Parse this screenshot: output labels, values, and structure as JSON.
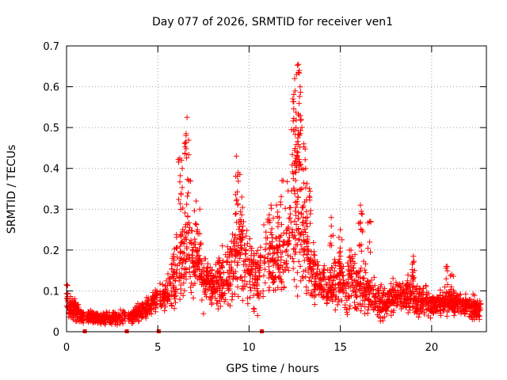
{
  "chart_data": {
    "type": "scatter",
    "title": "Day 077 of 2026, SRMTID for receiver ven1",
    "xlabel": "GPS time / hours",
    "ylabel": "SRMTID / TECUs",
    "xlim": [
      0,
      23
    ],
    "ylim": [
      0,
      0.7
    ],
    "xticks": [
      0,
      5,
      10,
      15,
      20
    ],
    "yticks": [
      0,
      0.1,
      0.2,
      0.3,
      0.4,
      0.5,
      0.6,
      0.7
    ],
    "grid": true,
    "marker": "+",
    "marker_color": "#ff0000",
    "gap_marker_color": "#ff0000",
    "gaps_x": [
      1.0,
      3.3,
      5.05,
      10.7
    ],
    "envelope": [
      [
        0.0,
        0.07,
        0.025
      ],
      [
        0.5,
        0.05,
        0.02
      ],
      [
        1.0,
        0.035,
        0.01
      ],
      [
        2.0,
        0.033,
        0.01
      ],
      [
        3.0,
        0.035,
        0.012
      ],
      [
        4.0,
        0.045,
        0.015
      ],
      [
        4.6,
        0.07,
        0.02
      ],
      [
        5.0,
        0.08,
        0.02
      ],
      [
        5.5,
        0.09,
        0.03
      ],
      [
        6.0,
        0.14,
        0.06
      ],
      [
        6.5,
        0.2,
        0.08
      ],
      [
        7.0,
        0.17,
        0.06
      ],
      [
        7.5,
        0.12,
        0.04
      ],
      [
        8.0,
        0.11,
        0.04
      ],
      [
        8.5,
        0.13,
        0.05
      ],
      [
        9.0,
        0.16,
        0.07
      ],
      [
        9.5,
        0.21,
        0.08
      ],
      [
        10.0,
        0.15,
        0.06
      ],
      [
        10.5,
        0.14,
        0.06
      ],
      [
        11.0,
        0.18,
        0.07
      ],
      [
        11.5,
        0.17,
        0.06
      ],
      [
        12.0,
        0.2,
        0.09
      ],
      [
        12.5,
        0.33,
        0.16
      ],
      [
        13.0,
        0.22,
        0.09
      ],
      [
        13.5,
        0.14,
        0.05
      ],
      [
        14.0,
        0.12,
        0.04
      ],
      [
        14.5,
        0.11,
        0.04
      ],
      [
        15.0,
        0.13,
        0.05
      ],
      [
        15.5,
        0.11,
        0.05
      ],
      [
        16.0,
        0.12,
        0.06
      ],
      [
        16.5,
        0.09,
        0.04
      ],
      [
        17.0,
        0.07,
        0.03
      ],
      [
        17.5,
        0.07,
        0.03
      ],
      [
        18.0,
        0.09,
        0.03
      ],
      [
        18.5,
        0.09,
        0.03
      ],
      [
        19.0,
        0.08,
        0.03
      ],
      [
        19.5,
        0.08,
        0.03
      ],
      [
        20.0,
        0.07,
        0.02
      ],
      [
        20.5,
        0.07,
        0.02
      ],
      [
        21.0,
        0.07,
        0.02
      ],
      [
        21.5,
        0.065,
        0.02
      ],
      [
        22.0,
        0.06,
        0.02
      ],
      [
        22.7,
        0.055,
        0.02
      ]
    ],
    "peaks": [
      [
        0.0,
        0.115
      ],
      [
        6.2,
        0.425
      ],
      [
        6.3,
        0.42
      ],
      [
        6.6,
        0.525
      ],
      [
        6.55,
        0.485
      ],
      [
        6.7,
        0.37
      ],
      [
        7.1,
        0.32
      ],
      [
        7.3,
        0.3
      ],
      [
        9.3,
        0.43
      ],
      [
        9.4,
        0.39
      ],
      [
        9.6,
        0.33
      ],
      [
        11.2,
        0.31
      ],
      [
        11.5,
        0.31
      ],
      [
        11.8,
        0.37
      ],
      [
        12.4,
        0.57
      ],
      [
        12.5,
        0.62
      ],
      [
        12.6,
        0.63
      ],
      [
        12.7,
        0.655
      ],
      [
        12.75,
        0.64
      ],
      [
        12.8,
        0.6
      ],
      [
        12.85,
        0.52
      ],
      [
        13.0,
        0.46
      ],
      [
        13.1,
        0.4
      ],
      [
        13.3,
        0.35
      ],
      [
        14.5,
        0.28
      ],
      [
        15.0,
        0.25
      ],
      [
        15.5,
        0.2
      ],
      [
        16.1,
        0.31
      ],
      [
        16.15,
        0.295
      ],
      [
        16.6,
        0.27
      ],
      [
        19.0,
        0.185
      ],
      [
        19.0,
        0.17
      ],
      [
        20.8,
        0.16
      ],
      [
        21.1,
        0.14
      ]
    ]
  }
}
